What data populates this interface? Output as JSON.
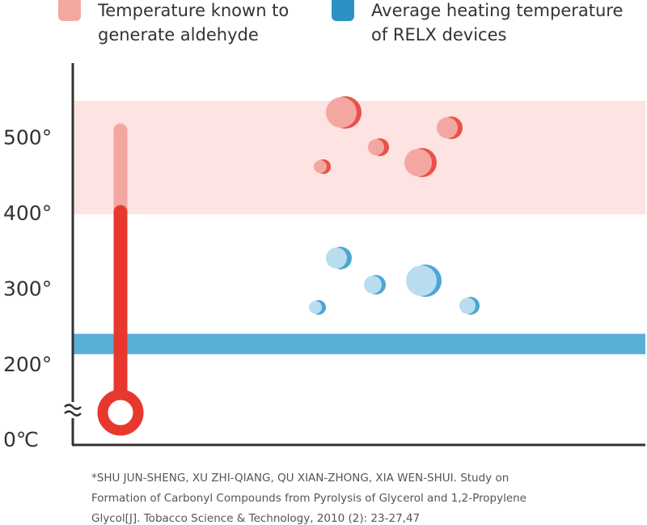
{
  "chart_data": {
    "type": "range",
    "series": [
      {
        "name": [
          "Temperature known to",
          "generate aldehyde"
        ],
        "color": "#f4a7a1",
        "fill": "#fde3e1",
        "range": [
          400,
          550
        ]
      },
      {
        "name": [
          "Average heating temperature",
          "of RELX devices"
        ],
        "color": "#2b92c4",
        "fill": "#5aafd6",
        "range": [
          215,
          242
        ]
      }
    ],
    "ylim": [
      95,
      600
    ],
    "yticks": [
      {
        "value": 0,
        "label": "0℃"
      },
      {
        "value": 200,
        "label": "200°"
      },
      {
        "value": 300,
        "label": "300°"
      },
      {
        "value": 400,
        "label": "400°"
      },
      {
        "value": 500,
        "label": "500°"
      }
    ],
    "axis_break": true,
    "footnote": [
      "*SHU JUN-SHENG, XU ZHI-QIANG, QU XIAN-ZHONG, XIA WEN-SHUI. Study on",
      "Formation of Carbonyl Compounds from Pyrolysis of Glycerol and 1,2-Propylene",
      "Glycol[J]. Tobacco Science & Technology, 2010 (2): 23-27,47"
    ]
  }
}
